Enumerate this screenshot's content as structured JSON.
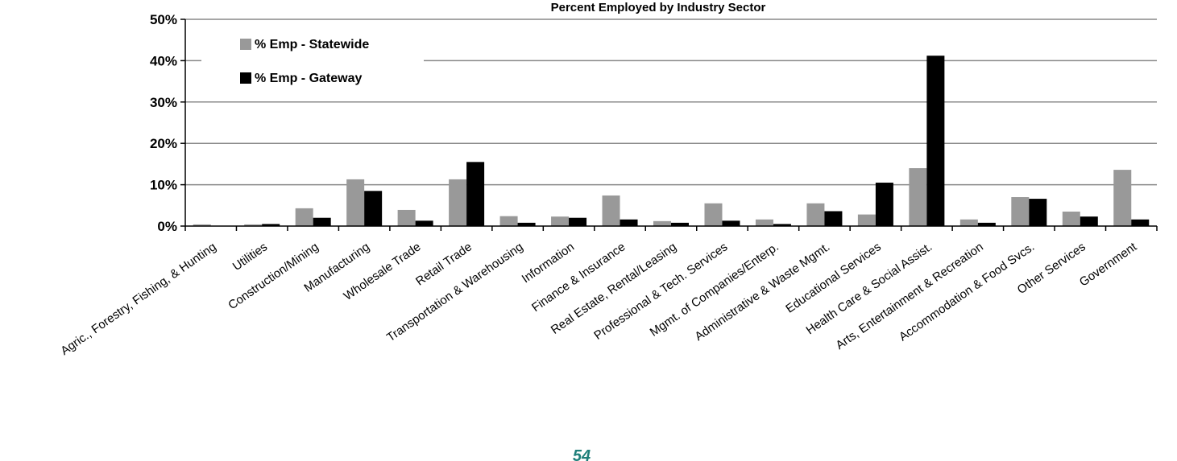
{
  "chart_data": {
    "type": "bar",
    "title": "Percent Employed by Industry Sector",
    "xlabel": "",
    "ylabel": "",
    "ylim": [
      0,
      50
    ],
    "yticks": [
      "0%",
      "10%",
      "20%",
      "30%",
      "40%",
      "50%"
    ],
    "grid": true,
    "legend_position": "top-left",
    "categories": [
      "Agric., Forestry, Fishing, & Hunting",
      "Utilities",
      "Construction/Mining",
      "Manufacturing",
      "Wholesale Trade",
      "Retail Trade",
      "Transportation & Warehousing",
      "Information",
      "Finance & Insurance",
      "Real Estate, Rental/Leasing",
      "Professional & Tech. Services",
      "Mgmt. of Companies/Enterp.",
      "Administrative & Waste Mgmt.",
      "Educational Services",
      "Health Care & Social Assist.",
      "Arts, Entertainment & Recreation",
      "Accommodation & Food Svcs.",
      "Other Services",
      "Government"
    ],
    "series": [
      {
        "name": "% Emp - Statewide",
        "color": "#999999",
        "values": [
          0.4,
          0.4,
          4.3,
          11.3,
          3.9,
          11.3,
          2.4,
          2.3,
          7.4,
          1.2,
          5.5,
          1.6,
          5.5,
          2.8,
          14.0,
          1.6,
          7.0,
          3.5,
          13.6
        ]
      },
      {
        "name": "% Emp - Gateway",
        "color": "#000000",
        "values": [
          0.0,
          0.5,
          2.0,
          8.5,
          1.3,
          15.5,
          0.8,
          2.0,
          1.6,
          0.8,
          1.3,
          0.5,
          3.6,
          10.5,
          41.2,
          0.8,
          6.6,
          2.3,
          1.6
        ]
      }
    ]
  },
  "footer": {
    "page_number": "54"
  }
}
